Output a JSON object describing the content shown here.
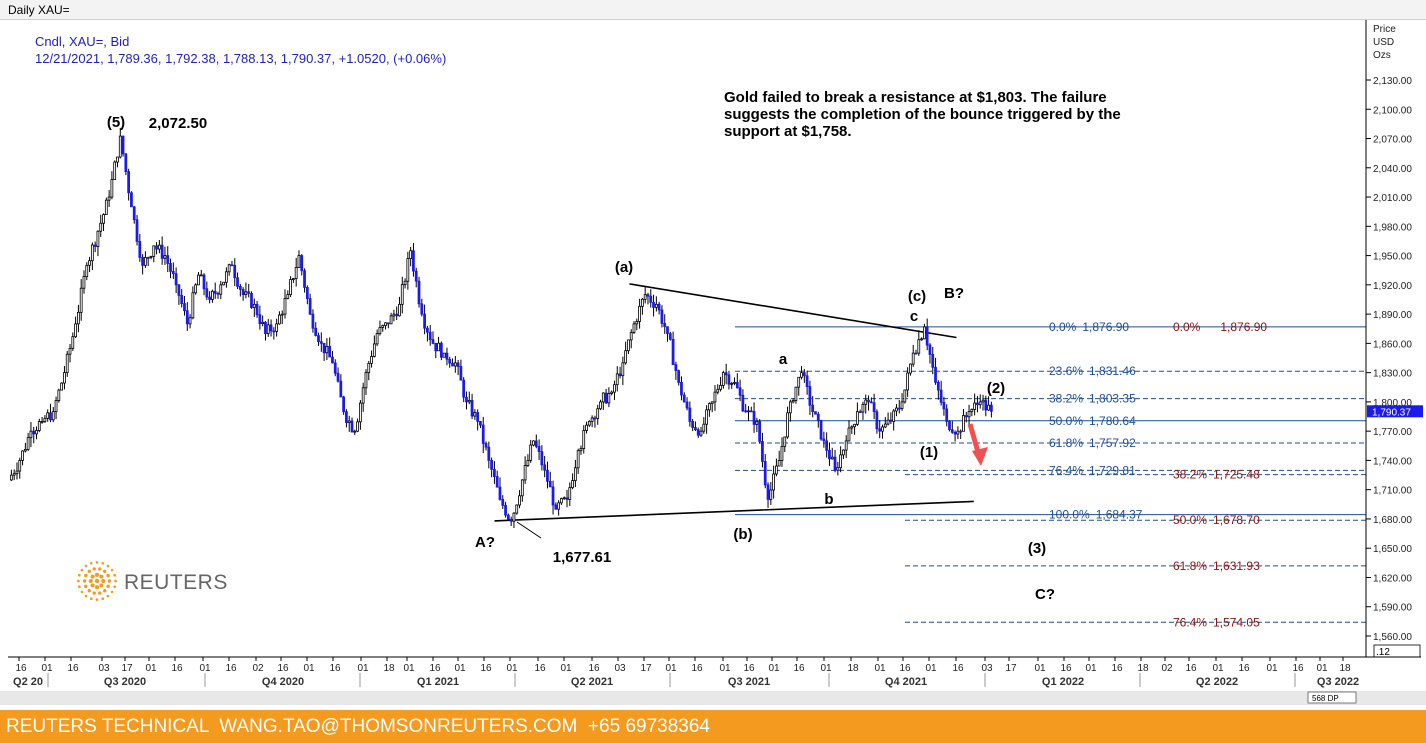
{
  "window": {
    "title": "Daily XAU="
  },
  "legend": {
    "line1": "Cndl, XAU=, Bid",
    "line2": "12/21/2021, 1,789.36, 1,792.38, 1,788.13, 1,790.37, +1.0520, (+0.06%)"
  },
  "commentary": [
    "Gold failed to break a resistance at $1,803. The failure",
    "suggests the completion of the bounce triggered by the",
    "support at $1,758."
  ],
  "footer": {
    "text": "REUTERS TECHNICAL  WANG.TAO@THOMSONREUTERS.COM  +65 69738364"
  },
  "logo": {
    "text": "REUTERS",
    "color": "#f39a1f"
  },
  "colors": {
    "candles": "#1a1aee",
    "fib_blue": "#1f4e99",
    "fib_red": "#8b1111",
    "arrow": "#f05050",
    "footer": "#f39a1f",
    "price_marker": "#1a1aee"
  },
  "chart_data": {
    "type": "candlestick",
    "instrument": "XAU=",
    "y_axis": {
      "title": [
        "Price",
        "USD",
        "Ozs"
      ],
      "ticks": [
        1560,
        1590,
        1620,
        1650,
        1680,
        1710,
        1740,
        1770,
        1800,
        1830,
        1860,
        1890,
        1920,
        1950,
        1980,
        2010,
        2040,
        2070,
        2100,
        2130
      ],
      "tick_labels": [
        "1,560.00",
        "1,590.00",
        "1,620.00",
        "1,650.00",
        "1,680.00",
        "1,710.00",
        "1,740.00",
        "1,770.00",
        "1,800.00",
        "1,830.00",
        "1,860.00",
        "1,890.00",
        "1,920.00",
        "1,950.00",
        "1,980.00",
        "2,010.00",
        "2,040.00",
        "2,070.00",
        "2,100.00",
        "2,130.00"
      ],
      "current_price_label": "1,790.37",
      "range": [
        1540,
        2150
      ],
      "corner_label": ".12"
    },
    "x_axis": {
      "day_labels": [
        "16",
        "01",
        "16",
        "03",
        "17",
        "01",
        "16",
        "01",
        "16",
        "02",
        "16",
        "01",
        "16",
        "01",
        "18",
        "01",
        "16",
        "01",
        "16",
        "01",
        "16",
        "01",
        "16",
        "03",
        "17",
        "01",
        "16",
        "01",
        "16",
        "01",
        "16",
        "01",
        "18",
        "01",
        "16",
        "01",
        "16",
        "03",
        "17",
        "01",
        "16",
        "01",
        "16",
        "18",
        "02",
        "16",
        "01",
        "16",
        "01",
        "16",
        "01",
        "18",
        "01"
      ],
      "periods": [
        "Q2 20",
        "Q3 2020",
        "Q4 2020",
        "Q1 2021",
        "Q2 2021",
        "Q3 2021",
        "Q4 2021",
        "Q1 2022",
        "Q2 2022",
        "Q3 2022"
      ],
      "scroll_label": "568 DP"
    },
    "price_path": {
      "x_start": "2020-06-01",
      "bar": "daily",
      "closes": [
        1720,
        1740,
        1770,
        1780,
        1790,
        1830,
        1880,
        1940,
        1975,
        2010,
        2072.5,
        2000,
        1940,
        1960,
        1950,
        1920,
        1880,
        1930,
        1905,
        1920,
        1940,
        1910,
        1900,
        1870,
        1880,
        1910,
        1950,
        1890,
        1860,
        1840,
        1790,
        1770,
        1830,
        1870,
        1880,
        1900,
        1955,
        1890,
        1860,
        1850,
        1840,
        1800,
        1780,
        1740,
        1700,
        1677.61,
        1720,
        1760,
        1730,
        1690,
        1700,
        1750,
        1780,
        1800,
        1810,
        1840,
        1880,
        1910,
        1900,
        1870,
        1820,
        1780,
        1770,
        1800,
        1830,
        1820,
        1790,
        1780,
        1700,
        1740,
        1800,
        1830,
        1790,
        1760,
        1730,
        1760,
        1790,
        1800,
        1770,
        1780,
        1800,
        1850,
        1876.9,
        1820,
        1780,
        1770,
        1790,
        1800,
        1790.37
      ]
    },
    "wave_labels": [
      "(5)",
      "2,072.50",
      "(a)",
      "A?",
      "1,677.61",
      "(b)",
      "a",
      "b",
      "(c)",
      "c",
      "B?",
      "(1)",
      "(2)",
      "(3)",
      "C?"
    ],
    "trendlines": [
      {
        "name": "resistance",
        "from": [
          "2021-05-25",
          1921
        ],
        "to": [
          "2021-11-30",
          1866
        ]
      },
      {
        "name": "support",
        "from": [
          "2021-03-08",
          1678
        ],
        "to": [
          "2021-12-10",
          1698
        ]
      }
    ],
    "fib_retracements_blue": [
      {
        "pct": "0.0%",
        "level": "1,876.90",
        "value": 1876.9
      },
      {
        "pct": "23.6%",
        "level": "1,831.46",
        "value": 1831.46
      },
      {
        "pct": "38.2%",
        "level": "1,803.35",
        "value": 1803.35
      },
      {
        "pct": "50.0%",
        "level": "1,780.64",
        "value": 1780.64
      },
      {
        "pct": "61.8%",
        "level": "1,757.92",
        "value": 1757.92
      },
      {
        "pct": "76.4%",
        "level": "1,729.81",
        "value": 1729.81
      },
      {
        "pct": "100.0%",
        "level": "1,684.37",
        "value": 1684.37
      }
    ],
    "fib_extensions_red": [
      {
        "pct": "0.0%",
        "level": "1,876.90",
        "value": 1876.9
      },
      {
        "pct": "38.2%",
        "level": "1,725.48",
        "value": 1725.48
      },
      {
        "pct": "50.0%",
        "level": "1,678.70",
        "value": 1678.7
      },
      {
        "pct": "61.8%",
        "level": "1,631.93",
        "value": 1631.93
      },
      {
        "pct": "76.4%",
        "level": "1,574.05",
        "value": 1574.05
      }
    ]
  }
}
